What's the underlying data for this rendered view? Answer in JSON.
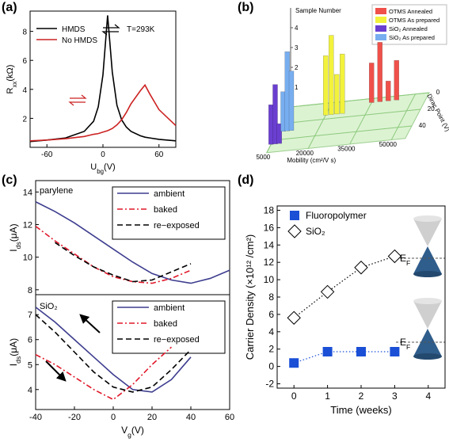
{
  "chart_data": [
    {
      "type": "line",
      "panel_label": "(a)",
      "xlabel": [
        {
          "text": "U"
        },
        {
          "text": "bg",
          "shift": "sub"
        },
        {
          "text": "(V)"
        }
      ],
      "ylabel": [
        {
          "text": "R"
        },
        {
          "text": "xx",
          "shift": "sub"
        },
        {
          "text": "(kΩ)"
        }
      ],
      "annotation": "T=293K",
      "x": [
        -78,
        -60,
        -40,
        -20,
        -10,
        -5,
        0,
        5,
        10,
        15,
        20,
        25,
        30,
        40,
        45,
        50,
        60,
        78
      ],
      "series": [
        {
          "name": "HMDS",
          "color": "#000000",
          "linestyle": "solid",
          "values": [
            0.4,
            0.5,
            0.65,
            1.1,
            1.8,
            2.8,
            5.0,
            9.1,
            5.2,
            2.9,
            1.9,
            1.4,
            1.1,
            0.8,
            0.7,
            0.65,
            0.55,
            0.45
          ]
        },
        {
          "name": "No HMDS",
          "color": "#cc2222",
          "linestyle": "solid",
          "values": [
            0.45,
            0.5,
            0.6,
            0.75,
            0.9,
            0.95,
            1.05,
            1.15,
            1.3,
            1.55,
            1.9,
            2.4,
            3.0,
            3.9,
            4.3,
            3.7,
            2.6,
            1.5
          ]
        }
      ],
      "xlim": [
        -78,
        78
      ],
      "xticks": [
        -60,
        0,
        60
      ],
      "ylim": [
        0,
        9.4
      ],
      "yticks": [
        2,
        4,
        6,
        8
      ],
      "legend": "upper left"
    },
    {
      "type": "bar3d",
      "panel_label": "(b)",
      "xlabel": "Mobility (cm²/V s)",
      "zlabel": "Dirac Point (V)",
      "ylabel": "Sample Number",
      "xlim": [
        5000,
        55000
      ],
      "xticks": [
        5000,
        20000,
        35000,
        50000
      ],
      "zlim": [
        0,
        55
      ],
      "zticks": [
        0,
        20,
        40
      ],
      "ylim": [
        0,
        5
      ],
      "yticks": [
        1,
        2,
        3,
        4
      ],
      "series": [
        {
          "name": "OTMS Annealed",
          "color": "#f0504a",
          "x": [
            35000,
            38000,
            41000,
            44000
          ],
          "z": [
            5,
            5,
            5,
            5
          ],
          "values": [
            2,
            3,
            1,
            2
          ]
        },
        {
          "name": "OTMS As prepared",
          "color": "#f2f23c",
          "x": [
            20000,
            22000,
            24000,
            26000
          ],
          "z": [
            15,
            15,
            15,
            15
          ],
          "values": [
            3,
            4,
            2,
            3
          ]
        },
        {
          "name": "SiO₂ Annealed",
          "color": "#6a3fd0",
          "x": [
            5000,
            6500,
            8000
          ],
          "z": [
            45,
            45,
            45
          ],
          "values": [
            2,
            3,
            1
          ]
        },
        {
          "name": "SiO₂ As prepared",
          "color": "#78aef0",
          "x": [
            7000,
            8500,
            10000
          ],
          "z": [
            30,
            30,
            30
          ],
          "values": [
            2,
            4,
            3
          ]
        }
      ]
    },
    {
      "type": "line",
      "panel_label": "(c)",
      "annotation": "parylene",
      "ylabel": [
        {
          "text": "I"
        },
        {
          "text": "ds",
          "shift": "sub"
        },
        {
          "text": "(μA)"
        }
      ],
      "x": [
        -40,
        -30,
        -20,
        -10,
        0,
        10,
        20,
        30,
        40,
        50,
        60
      ],
      "series": [
        {
          "name": "ambient",
          "color": "#3d3d8f",
          "linestyle": "solid",
          "values": [
            13.4,
            12.8,
            12.1,
            11.3,
            10.5,
            9.7,
            9.0,
            8.6,
            8.4,
            8.7,
            9.2
          ]
        },
        {
          "name": "baked",
          "color": "#e0182a",
          "linestyle": "dashdot",
          "values": [
            11.9,
            11.0,
            10.2,
            9.4,
            8.8,
            8.5,
            8.4,
            8.7,
            9.2,
            null,
            null
          ]
        },
        {
          "name": "re−exposed",
          "color": "#000000",
          "linestyle": "dashed",
          "values": [
            null,
            10.9,
            10.1,
            9.4,
            8.9,
            8.5,
            8.6,
            9.1,
            9.6,
            null,
            null
          ]
        }
      ],
      "xlim": [
        -40,
        60
      ],
      "ylim": [
        7.7,
        14.7
      ],
      "yticks": [
        8,
        10,
        12,
        14
      ],
      "legend": "upper right"
    },
    {
      "type": "line",
      "annotation": "SiO₂",
      "xlabel": [
        {
          "text": "V"
        },
        {
          "text": "g",
          "shift": "sub"
        },
        {
          "text": "(V)"
        }
      ],
      "ylabel": [
        {
          "text": "I"
        },
        {
          "text": "ds",
          "shift": "sub"
        },
        {
          "text": "(μA)"
        }
      ],
      "x": [
        -40,
        -30,
        -20,
        -10,
        0,
        10,
        20,
        30,
        40
      ],
      "series": [
        {
          "name": "ambient",
          "color": "#3d3d8f",
          "linestyle": "solid",
          "values": [
            7.3,
            6.7,
            6.0,
            5.3,
            4.6,
            4.0,
            3.9,
            4.4,
            5.3
          ]
        },
        {
          "name": "baked",
          "color": "#e0182a",
          "linestyle": "dashdot",
          "values": [
            5.4,
            5.0,
            4.5,
            4.0,
            3.6,
            4.2,
            5.0,
            5.7,
            null
          ]
        },
        {
          "name": "re−exposed",
          "color": "#000000",
          "linestyle": "dashed",
          "values": [
            7.0,
            6.3,
            5.5,
            4.7,
            4.1,
            3.9,
            4.1,
            4.8,
            5.6
          ]
        }
      ],
      "xlim": [
        -40,
        60
      ],
      "xticks": [
        -40,
        -20,
        0,
        20,
        40,
        60
      ],
      "ylim": [
        3.2,
        7.8
      ],
      "yticks": [
        4,
        5,
        6,
        7
      ],
      "legend": "upper right"
    },
    {
      "type": "scatter",
      "panel_label": "(d)",
      "xlabel": [
        {
          "text": "Time (weeks)"
        }
      ],
      "ylabel": [
        {
          "text": "Carrier Density (×10¹² /cm²)"
        }
      ],
      "annotations": [
        [
          {
            "text": "E"
          },
          {
            "text": "F",
            "shift": "sub"
          }
        ],
        [
          {
            "text": "E"
          },
          {
            "text": "F",
            "shift": "sub"
          }
        ]
      ],
      "x": [
        0,
        1,
        2,
        3
      ],
      "series": [
        {
          "name": "Fluoropolymer",
          "color": "#1a4fd6",
          "marker": "square",
          "linestyle": "dotted",
          "values": [
            0.4,
            1.7,
            1.7,
            1.7
          ]
        },
        {
          "name": "SiO₂",
          "color": "#000000",
          "marker": "diamond",
          "linestyle": "dotted",
          "values": [
            5.6,
            8.6,
            11.4,
            12.7
          ]
        }
      ],
      "xlim": [
        -0.5,
        4.5
      ],
      "xticks": [
        0,
        1,
        2,
        3,
        4
      ],
      "ylim": [
        -2.5,
        18.5
      ],
      "yticks": [
        -2,
        0,
        2,
        4,
        6,
        8,
        10,
        12,
        14,
        16,
        18
      ],
      "legend": "upper left"
    }
  ]
}
